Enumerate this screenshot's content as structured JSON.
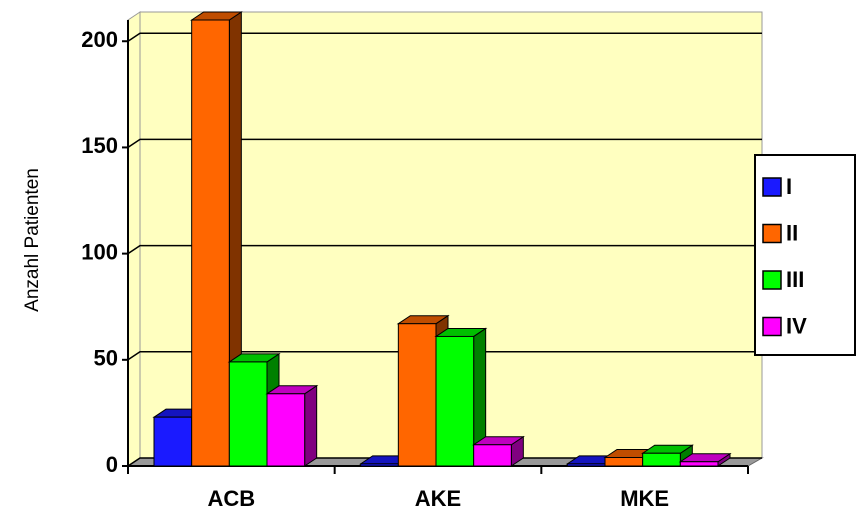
{
  "chart_data": {
    "type": "bar3d",
    "y_label": "Anzahl Patienten",
    "categories": [
      "ACB",
      "AKE",
      "MKE"
    ],
    "series": [
      {
        "name": "I",
        "color": "#1a1aff",
        "values": [
          23,
          1,
          1
        ]
      },
      {
        "name": "II",
        "color": "#ff6600",
        "values": [
          210,
          67,
          4
        ]
      },
      {
        "name": "III",
        "color": "#00ff00",
        "values": [
          49,
          61,
          6
        ]
      },
      {
        "name": "IV",
        "color": "#ff00ff",
        "values": [
          34,
          10,
          2
        ]
      }
    ],
    "ylim": [
      0,
      210
    ],
    "yticks": [
      0,
      50,
      100,
      150,
      200
    ],
    "grid": true,
    "legend": "right"
  }
}
